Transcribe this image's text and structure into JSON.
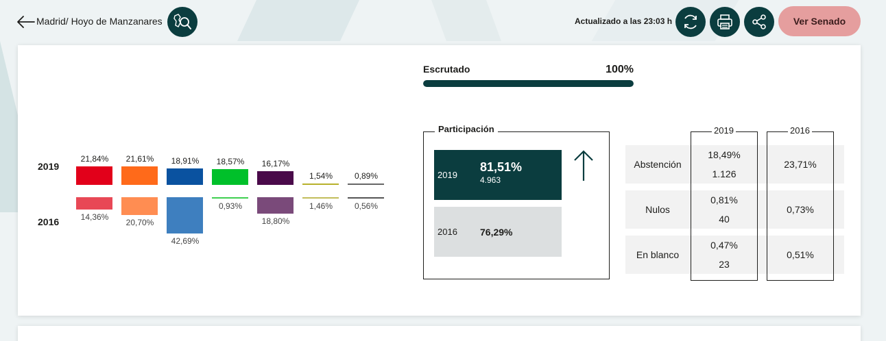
{
  "header": {
    "breadcrumb": "Madrid/ Hoyo de Manzanares",
    "updated": "Actualizado a las 23:03 h",
    "senado_label": "Ver Senado",
    "icons": [
      "back-arrow-icon",
      "map-search-icon",
      "refresh-icon",
      "print-icon",
      "share-icon"
    ]
  },
  "chart_data": {
    "type": "bar",
    "title": "",
    "series": [
      {
        "name": "2019",
        "values": [
          21.84,
          21.61,
          18.91,
          18.57,
          16.17,
          1.54,
          0.89
        ],
        "labels": [
          "21,84%",
          "21,61%",
          "18,91%",
          "18,57%",
          "16,17%",
          "1,54%",
          "0,89%"
        ]
      },
      {
        "name": "2016",
        "values": [
          14.36,
          20.7,
          42.69,
          0.93,
          18.8,
          1.46,
          0.56
        ],
        "labels": [
          "14,36%",
          "20,70%",
          "42,69%",
          "0,93%",
          "18,80%",
          "1,46%",
          "0,56%"
        ]
      }
    ],
    "colors_2019": [
      "#e2001a",
      "#ff6a1a",
      "#0a52a0",
      "#00c02a",
      "#4a0a4a",
      "#b7b12a",
      "#666666"
    ],
    "colors_2016": [
      "#e84856",
      "#ff8d52",
      "#3e7fbf",
      "#3dcf4f",
      "#7a4a7a",
      "#c2bd5a",
      "#555555"
    ]
  },
  "escrutado": {
    "label": "Escrutado",
    "value": "100%",
    "fraction": 1.0
  },
  "participacion": {
    "title": "Participación",
    "y2019": {
      "year": "2019",
      "percent": "81,51%",
      "votes": "4.963"
    },
    "y2016": {
      "year": "2016",
      "percent": "76,29%"
    },
    "trend_icon": "arrow-up-icon"
  },
  "table": {
    "col_2019": "2019",
    "col_2016": "2016",
    "rows": [
      {
        "label": "Abstención",
        "pct2019": "18,49%",
        "num2019": "1.126",
        "pct2016": "23,71%"
      },
      {
        "label": "Nulos",
        "pct2019": "0,81%",
        "num2019": "40",
        "pct2016": "0,73%"
      },
      {
        "label": "En blanco",
        "pct2019": "0,47%",
        "num2019": "23",
        "pct2016": "0,51%"
      }
    ]
  }
}
